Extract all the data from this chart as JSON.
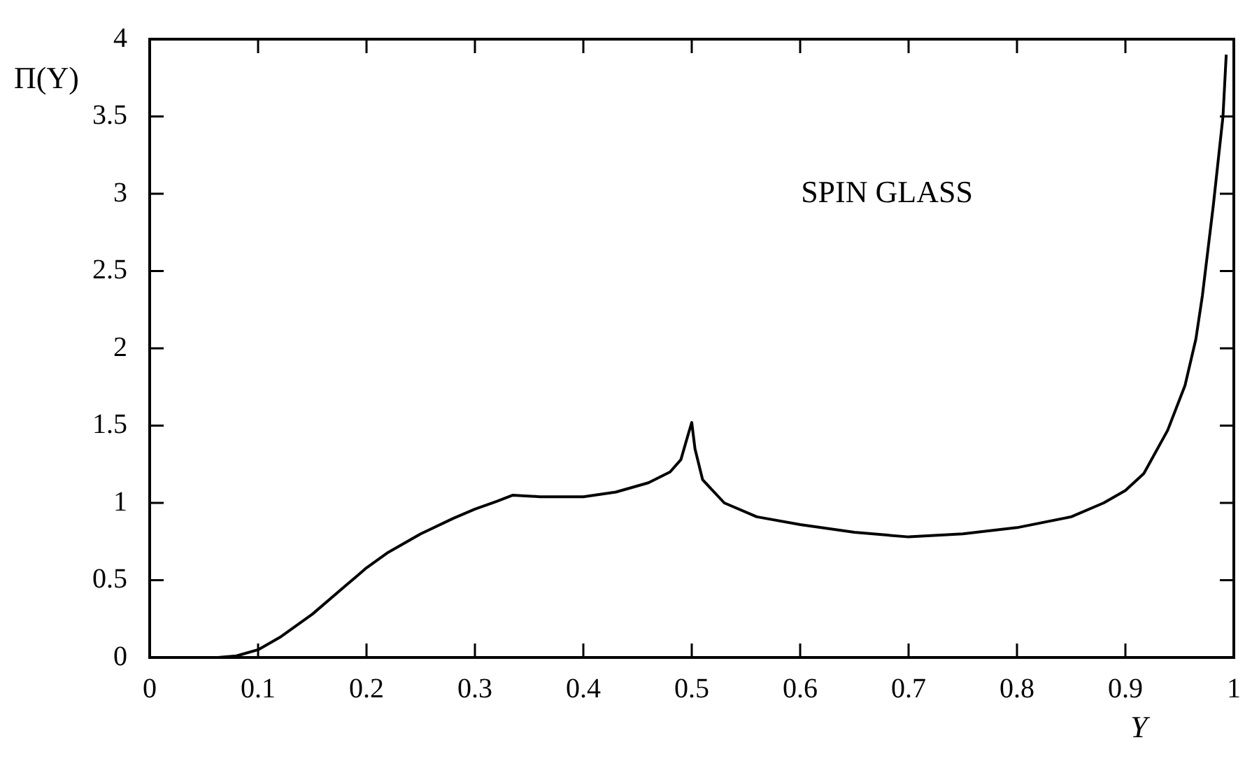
{
  "chart_data": {
    "type": "line",
    "xlabel": "Y",
    "ylabel": "Π(Y)",
    "annotations": [
      "SPIN GLASS"
    ],
    "x": [
      0.063,
      0.08,
      0.1,
      0.12,
      0.15,
      0.18,
      0.2,
      0.22,
      0.25,
      0.28,
      0.3,
      0.32,
      0.335,
      0.36,
      0.4,
      0.43,
      0.46,
      0.48,
      0.49,
      0.497,
      0.5,
      0.503,
      0.51,
      0.53,
      0.56,
      0.6,
      0.65,
      0.7,
      0.75,
      0.8,
      0.85,
      0.88,
      0.9,
      0.917,
      0.939,
      0.955,
      0.965,
      0.971,
      0.981,
      0.99,
      0.993
    ],
    "series": [
      {
        "color": "#000000",
        "values": [
          0,
          0.01,
          0.05,
          0.13,
          0.28,
          0.46,
          0.58,
          0.68,
          0.8,
          0.9,
          0.96,
          1.01,
          1.05,
          1.04,
          1.04,
          1.07,
          1.13,
          1.2,
          1.28,
          1.45,
          1.52,
          1.35,
          1.15,
          1.0,
          0.91,
          0.86,
          0.81,
          0.78,
          0.8,
          0.84,
          0.91,
          1.0,
          1.08,
          1.19,
          1.47,
          1.76,
          2.06,
          2.34,
          2.92,
          3.5,
          3.9
        ]
      }
    ],
    "xlim": [
      0,
      1
    ],
    "xticks": [
      0,
      0.1,
      0.2,
      0.3,
      0.4,
      0.5,
      0.6,
      0.7,
      0.8,
      0.9,
      1
    ],
    "ylim": [
      0,
      4
    ],
    "yticks": [
      0,
      0.5,
      1,
      1.5,
      2,
      2.5,
      3,
      3.5,
      4
    ],
    "grid": false,
    "legend": false,
    "marker": "none",
    "line_style": "solid"
  }
}
